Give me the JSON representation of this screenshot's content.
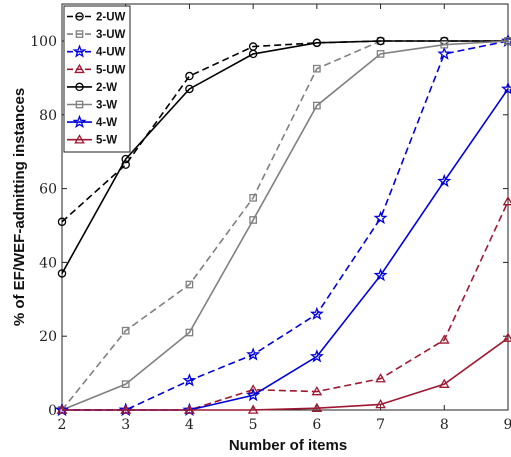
{
  "chart_data": {
    "type": "line",
    "xlabel": "Number of items",
    "ylabel": "% of EF/WEF-admitting instances",
    "x": [
      2,
      3,
      4,
      5,
      6,
      7,
      8,
      9
    ],
    "xlim": [
      2,
      9
    ],
    "ylim": [
      0,
      100
    ],
    "xticks": [
      "2",
      "3",
      "4",
      "5",
      "6",
      "7",
      "8",
      "9"
    ],
    "yticks": [
      "0",
      "20",
      "40",
      "60",
      "80",
      "100"
    ],
    "legend_position": "top-left",
    "grid": false,
    "series": [
      {
        "name": "2-UW",
        "color": "#000000",
        "dash": true,
        "marker": "circle",
        "values": [
          51,
          66.5,
          90.5,
          98.5,
          99.5,
          100,
          100,
          100
        ]
      },
      {
        "name": "3-UW",
        "color": "#808080",
        "dash": true,
        "marker": "square",
        "values": [
          0,
          21.5,
          34,
          57.5,
          92.5,
          100,
          100,
          100
        ]
      },
      {
        "name": "4-UW",
        "color": "#0000dd",
        "dash": true,
        "marker": "star",
        "values": [
          0,
          0,
          8,
          15,
          26,
          52,
          96.5,
          100
        ]
      },
      {
        "name": "5-UW",
        "color": "#a01830",
        "dash": true,
        "marker": "triangle",
        "values": [
          0,
          0,
          0,
          5.5,
          5,
          8.5,
          19,
          56.5
        ]
      },
      {
        "name": "2-W",
        "color": "#000000",
        "dash": false,
        "marker": "circle",
        "values": [
          37,
          68,
          87,
          96.5,
          99.5,
          100,
          100,
          100
        ]
      },
      {
        "name": "3-W",
        "color": "#808080",
        "dash": false,
        "marker": "square",
        "values": [
          0,
          7,
          21,
          51.5,
          82.5,
          96.5,
          99,
          100
        ]
      },
      {
        "name": "4-W",
        "color": "#0000dd",
        "dash": false,
        "marker": "star",
        "values": [
          0,
          0,
          0,
          4,
          14.5,
          36.5,
          62,
          87
        ]
      },
      {
        "name": "5-W",
        "color": "#a01830",
        "dash": false,
        "marker": "triangle",
        "values": [
          0,
          0,
          0,
          0,
          0.5,
          1.5,
          7,
          19.5
        ]
      }
    ]
  }
}
